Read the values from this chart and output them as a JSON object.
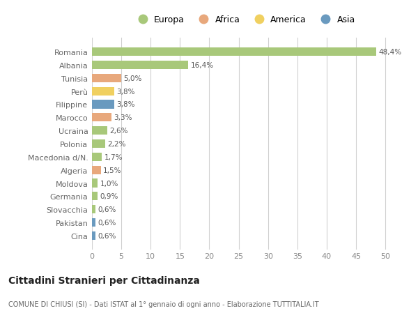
{
  "countries": [
    "Romania",
    "Albania",
    "Tunisia",
    "Perù",
    "Filippine",
    "Marocco",
    "Ucraina",
    "Polonia",
    "Macedonia d/N.",
    "Algeria",
    "Moldova",
    "Germania",
    "Slovacchia",
    "Pakistan",
    "Cina"
  ],
  "values": [
    48.4,
    16.4,
    5.0,
    3.8,
    3.8,
    3.3,
    2.6,
    2.2,
    1.7,
    1.5,
    1.0,
    0.9,
    0.6,
    0.6,
    0.6
  ],
  "labels": [
    "48,4%",
    "16,4%",
    "5,0%",
    "3,8%",
    "3,8%",
    "3,3%",
    "2,6%",
    "2,2%",
    "1,7%",
    "1,5%",
    "1,0%",
    "0,9%",
    "0,6%",
    "0,6%",
    "0,6%"
  ],
  "regions": [
    "Europa",
    "Europa",
    "Africa",
    "America",
    "Asia",
    "Africa",
    "Europa",
    "Europa",
    "Europa",
    "Africa",
    "Europa",
    "Europa",
    "Europa",
    "Asia",
    "Asia"
  ],
  "colors": {
    "Europa": "#a8c87a",
    "Africa": "#e8a87c",
    "America": "#f0d060",
    "Asia": "#6a9abf"
  },
  "background_color": "#ffffff",
  "grid_color": "#d0d0d0",
  "title": "Cittadini Stranieri per Cittadinanza",
  "subtitle": "COMUNE DI CHIUSI (SI) - Dati ISTAT al 1° gennaio di ogni anno - Elaborazione TUTTITALIA.IT",
  "xlim": [
    0,
    52
  ],
  "xticks": [
    0,
    5,
    10,
    15,
    20,
    25,
    30,
    35,
    40,
    45,
    50
  ],
  "legend_order": [
    "Europa",
    "Africa",
    "America",
    "Asia"
  ]
}
